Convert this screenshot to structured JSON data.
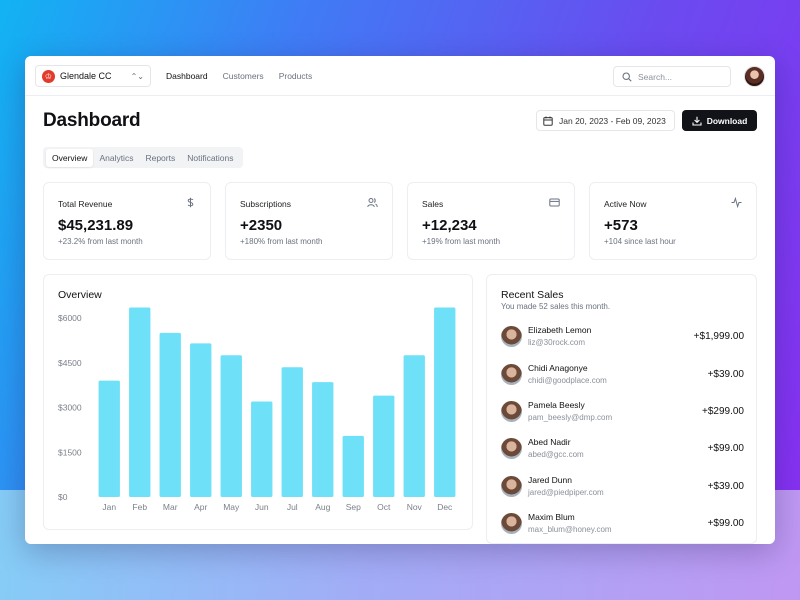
{
  "team": {
    "name": "Glendale CC",
    "logo_letter": "♔"
  },
  "nav": [
    "Dashboard",
    "Customers",
    "Products"
  ],
  "search": {
    "placeholder": "Search..."
  },
  "page": {
    "title": "Dashboard"
  },
  "date_range": "Jan 20, 2023 - Feb 09, 2023",
  "download_label": "Download",
  "tabs": [
    "Overview",
    "Analytics",
    "Reports",
    "Notifications"
  ],
  "stats": [
    {
      "label": "Total Revenue",
      "value": "$45,231.89",
      "delta": "+23.2% from last month",
      "icon": "dollar-icon"
    },
    {
      "label": "Subscriptions",
      "value": "+2350",
      "delta": "+180% from last month",
      "icon": "users-icon"
    },
    {
      "label": "Sales",
      "value": "+12,234",
      "delta": "+19% from last month",
      "icon": "credit-card-icon"
    },
    {
      "label": "Active Now",
      "value": "+573",
      "delta": "+104 since last hour",
      "icon": "activity-icon"
    }
  ],
  "overview": {
    "title": "Overview"
  },
  "chart_data": {
    "type": "bar",
    "categories": [
      "Jan",
      "Feb",
      "Mar",
      "Apr",
      "May",
      "Jun",
      "Jul",
      "Aug",
      "Sep",
      "Oct",
      "Nov",
      "Dec"
    ],
    "values": [
      3900,
      6350,
      5500,
      5150,
      4750,
      3200,
      4350,
      3850,
      2050,
      3400,
      4750,
      6350
    ],
    "yticks": [
      "$0",
      "$1500",
      "$3000",
      "$4500",
      "$6000"
    ],
    "ylim": [
      0,
      6000
    ],
    "color": "#6ee1f8",
    "grid": false
  },
  "recent_sales": {
    "title": "Recent Sales",
    "subtitle": "You made 52 sales this month.",
    "items": [
      {
        "name": "Elizabeth Lemon",
        "email": "liz@30rock.com",
        "amount": "+$1,999.00"
      },
      {
        "name": "Chidi Anagonye",
        "email": "chidi@goodplace.com",
        "amount": "+$39.00"
      },
      {
        "name": "Pamela Beesly",
        "email": "pam_beesly@dmp.com",
        "amount": "+$299.00"
      },
      {
        "name": "Abed Nadir",
        "email": "abed@gcc.com",
        "amount": "+$99.00"
      },
      {
        "name": "Jared Dunn",
        "email": "jared@piedpiper.com",
        "amount": "+$39.00"
      },
      {
        "name": "Maxim Blum",
        "email": "max_blum@honey.com",
        "amount": "+$99.00"
      }
    ]
  }
}
